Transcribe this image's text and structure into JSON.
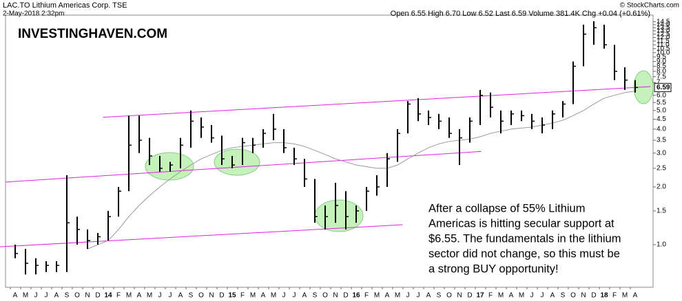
{
  "chart_data": {
    "type": "hlc",
    "title": "LAC.TO Lithium Americas Corp. TSE",
    "date": "2-May-2018 2:32pm",
    "quote": "Open 6.55  High 6.70  Low 6.52  Last 6.59  Volume 381.4K  Chg +0.04 (+0.61%)",
    "credit": "© StockCharts.com",
    "watermark": "INVESTINGHAVEN.COM",
    "annotation": [
      "After a collapse of 55% Lithium",
      "Americas is hitting secular support at",
      "$6.55. The fundamentals in the lithium",
      "sector did not change, so this must be",
      "a strong BUY opportunity!"
    ],
    "last_price": 6.59,
    "log_scale": true,
    "ylim": [
      0.6,
      15.7
    ],
    "yticks": [
      {
        "value": 1,
        "label": "1.0"
      },
      1.5,
      {
        "value": 2,
        "label": "2.0"
      },
      2.5,
      {
        "value": 3,
        "label": "3.0"
      },
      3.5,
      {
        "value": 4,
        "label": "4.0"
      },
      4.5,
      {
        "value": 5,
        "label": "5.0"
      },
      5.5,
      {
        "value": 6,
        "label": "6.0"
      },
      7,
      7.5,
      {
        "value": 8,
        "label": "8.0"
      },
      8.5,
      {
        "value": 9,
        "label": "9.0"
      },
      9.5,
      {
        "value": 10,
        "label": "10.0"
      },
      10.5,
      {
        "value": 11,
        "label": "11.0"
      },
      11.5,
      {
        "value": 12,
        "label": "12.0"
      },
      12.5,
      {
        "value": 13,
        "label": "13.0"
      },
      13.5,
      {
        "value": 14,
        "label": "14.0"
      },
      14.5
    ],
    "categories": [
      "A",
      "M",
      "J",
      "J",
      "A",
      "S",
      "O",
      "N",
      "D",
      "14",
      "F",
      "M",
      "A",
      "M",
      "J",
      "J",
      "A",
      "S",
      "O",
      "N",
      "D",
      "15",
      "F",
      "M",
      "A",
      "M",
      "J",
      "J",
      "A",
      "S",
      "O",
      "N",
      "D",
      "16",
      "F",
      "M",
      "A",
      "M",
      "J",
      "J",
      "A",
      "S",
      "O",
      "N",
      "D",
      "17",
      "F",
      "M",
      "A",
      "M",
      "J",
      "J",
      "A",
      "S",
      "O",
      "N",
      "D",
      "18",
      "F",
      "M",
      "A"
    ],
    "high": [
      1.0,
      0.95,
      0.85,
      0.82,
      0.82,
      2.3,
      1.4,
      1.2,
      1.15,
      1.5,
      2.0,
      4.7,
      4.7,
      3.6,
      2.9,
      2.7,
      3.6,
      5.0,
      4.6,
      4.2,
      3.7,
      2.9,
      3.6,
      3.6,
      4.0,
      4.8,
      4.0,
      3.2,
      2.8,
      2.2,
      1.6,
      2.1,
      1.9,
      1.6,
      2.0,
      2.3,
      3.0,
      4.0,
      5.6,
      5.8,
      5.0,
      4.8,
      4.6,
      4.0,
      4.6,
      6.4,
      6.2,
      5.0,
      5.0,
      5.0,
      4.8,
      4.6,
      5.0,
      5.6,
      9.0,
      14.0,
      14.6,
      14.0,
      11.0,
      8.4,
      7.2
    ],
    "low": [
      0.85,
      0.7,
      0.7,
      0.72,
      0.72,
      0.72,
      1.0,
      0.95,
      1.0,
      1.05,
      1.4,
      1.9,
      3.0,
      2.6,
      2.4,
      2.4,
      2.5,
      3.2,
      3.6,
      3.4,
      2.6,
      2.5,
      2.6,
      3.0,
      3.2,
      3.5,
      3.0,
      2.6,
      2.0,
      1.3,
      1.2,
      1.3,
      1.2,
      1.3,
      1.5,
      1.8,
      2.0,
      2.7,
      3.8,
      4.4,
      4.2,
      4.0,
      3.6,
      2.6,
      3.4,
      4.2,
      4.6,
      3.8,
      4.2,
      4.4,
      4.0,
      3.8,
      4.0,
      4.6,
      5.4,
      8.5,
      11.0,
      10.5,
      7.2,
      6.4,
      6.2
    ],
    "close": [
      0.9,
      0.8,
      0.78,
      0.78,
      0.78,
      1.3,
      1.2,
      1.05,
      1.1,
      1.4,
      1.9,
      3.3,
      3.5,
      2.9,
      2.5,
      2.6,
      3.3,
      4.4,
      4.1,
      3.6,
      2.8,
      2.6,
      3.4,
      3.3,
      3.8,
      4.0,
      3.2,
      2.8,
      2.2,
      1.4,
      1.4,
      1.6,
      1.4,
      1.5,
      1.9,
      2.0,
      2.8,
      3.8,
      5.4,
      4.8,
      4.6,
      4.4,
      3.8,
      3.6,
      4.4,
      6.0,
      5.2,
      4.4,
      4.8,
      4.7,
      4.4,
      4.2,
      4.8,
      5.4,
      8.5,
      12.5,
      13.5,
      11.0,
      8.0,
      7.2,
      6.59
    ],
    "bar_color": "#000000",
    "ma": [
      null,
      null,
      null,
      null,
      null,
      null,
      null,
      0.95,
      1.0,
      1.05,
      1.2,
      1.4,
      1.6,
      1.8,
      2.0,
      2.2,
      2.4,
      2.6,
      2.8,
      2.95,
      3.1,
      3.2,
      3.25,
      3.3,
      3.35,
      3.4,
      3.4,
      3.35,
      3.25,
      3.1,
      2.95,
      2.8,
      2.7,
      2.6,
      2.55,
      2.5,
      2.5,
      2.6,
      2.8,
      3.0,
      3.2,
      3.35,
      3.45,
      3.5,
      3.55,
      3.65,
      3.8,
      3.9,
      4.0,
      4.05,
      4.1,
      4.2,
      4.3,
      4.45,
      4.7,
      5.0,
      5.4,
      5.8,
      6.0,
      6.2,
      6.3
    ],
    "ma_color": "#999999",
    "trendlines": [
      {
        "x": [
          8.5,
          61.5
        ],
        "y": [
          4.61,
          6.66
        ]
      },
      {
        "x": [
          -0.9,
          45.1
        ],
        "y": [
          2.12,
          3.06
        ]
      },
      {
        "x": [
          -1.5,
          37.5
        ],
        "y": [
          0.975,
          1.27
        ]
      }
    ],
    "trendline_color": "#e020e0"
  }
}
